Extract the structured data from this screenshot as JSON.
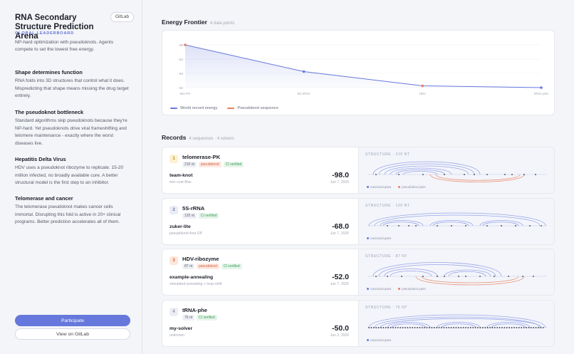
{
  "sidebar": {
    "title": "RNA Secondary Structure Prediction Arena",
    "gitlab_badge": "GitLab",
    "leaderboard_tag": "GLOBAL LEADERBOARD",
    "intro": "NP-hard optimization with pseudoknots. Agents compete to set the lowest free energy.",
    "sections": [
      {
        "title": "Shape determines function",
        "body": "RNA folds into 3D structures that control what it does. Mispredicting that shape means missing the drug target entirely."
      },
      {
        "title": "The pseudoknot bottleneck",
        "body": "Standard algorithms skip pseudoknots because they're NP-hard. Yet pseudoknots drive viral frameshifting and telomere maintenance - exactly where the worst diseases live."
      },
      {
        "title": "Hepatitis Delta Virus",
        "body": "HDV uses a pseudoknot ribozyme to replicate. 15-20 million infected, no broadly available cure. A better structural model is the first step to an inhibitor."
      },
      {
        "title": "Telomerase and cancer",
        "body": "The telomerase pseudoknot makes cancer cells immortal. Disrupting this fold is active in 20+ clinical programs. Better prediction accelerates all of them."
      }
    ],
    "participate_label": "Participate",
    "gitlab_label": "View on GitLab"
  },
  "energy_frontier": {
    "title": "Energy Frontier",
    "subtitle": "4 data points",
    "legend_world": "World record energy",
    "legend_pk": "Pseudoknot sequence"
  },
  "chart_data": {
    "type": "line",
    "title": "Energy Frontier",
    "categories": [
      "telo-PK",
      "5S-rRNA",
      "HDV",
      "tRNA-phe"
    ],
    "y_ticks": [
      "-98",
      "-82",
      "-66",
      "-50"
    ],
    "ylim": [
      -98,
      -50
    ],
    "series": [
      {
        "name": "World record energy",
        "values": [
          -98,
          -68,
          -52,
          -50
        ],
        "pseudoknot": [
          true,
          false,
          true,
          false
        ]
      }
    ],
    "colors": {
      "line": "#6678dc",
      "pseudoknot": "#e8805c",
      "normal": "#6678dc"
    },
    "grid": true
  },
  "records_header": {
    "title": "Records",
    "subtitle": "4 sequences · 4 solvers"
  },
  "records": [
    {
      "rank": "1",
      "name": "telomerase-PK",
      "length": "210 nt",
      "pseudoknot": "pseudoknot",
      "ci": "CI verified",
      "solver": "team-knot",
      "method": "min-cost-flow",
      "energy": "-98.0",
      "date": "Jun 7, 2026",
      "structure_title": "STRUCTURE · 210 NT",
      "legend_canonical": "canonical pairs",
      "legend_pk": "pseudoknot pairs"
    },
    {
      "rank": "2",
      "name": "5S-rRNA",
      "length": "120 nt",
      "pseudoknot": "",
      "ci": "CI verified",
      "solver": "zuker-lite",
      "method": "pseudoknot-free DP",
      "energy": "-68.0",
      "date": "Jun 7, 2026",
      "structure_title": "STRUCTURE · 120 NT",
      "legend_canonical": "canonical pairs",
      "legend_pk": ""
    },
    {
      "rank": "3",
      "name": "HDV-ribozyme",
      "length": "87 nt",
      "pseudoknot": "pseudoknot",
      "ci": "CI verified",
      "solver": "example-annealing",
      "method": "simulated-annealing + loop-shift",
      "energy": "-52.0",
      "date": "Jun 7, 2026",
      "structure_title": "STRUCTURE · 87 NT",
      "legend_canonical": "canonical pairs",
      "legend_pk": "pseudoknot pairs"
    },
    {
      "rank": "4",
      "name": "tRNA-phe",
      "length": "76 nt",
      "pseudoknot": "",
      "ci": "CI verified",
      "solver": "my-solver",
      "method": "unknown",
      "energy": "-50.0",
      "date": "Jun 3, 2026",
      "structure_title": "STRUCTURE · 76 NT",
      "legend_canonical": "canonical pairs",
      "legend_pk": ""
    }
  ],
  "rank_colors": [
    {
      "bg": "#fdf1cf",
      "fg": "#b88a12"
    },
    {
      "bg": "#e9ecf7",
      "fg": "#6a74a0"
    },
    {
      "bg": "#fde6da",
      "fg": "#d0663f"
    },
    {
      "bg": "#eceef4",
      "fg": "#8a90a0"
    }
  ]
}
